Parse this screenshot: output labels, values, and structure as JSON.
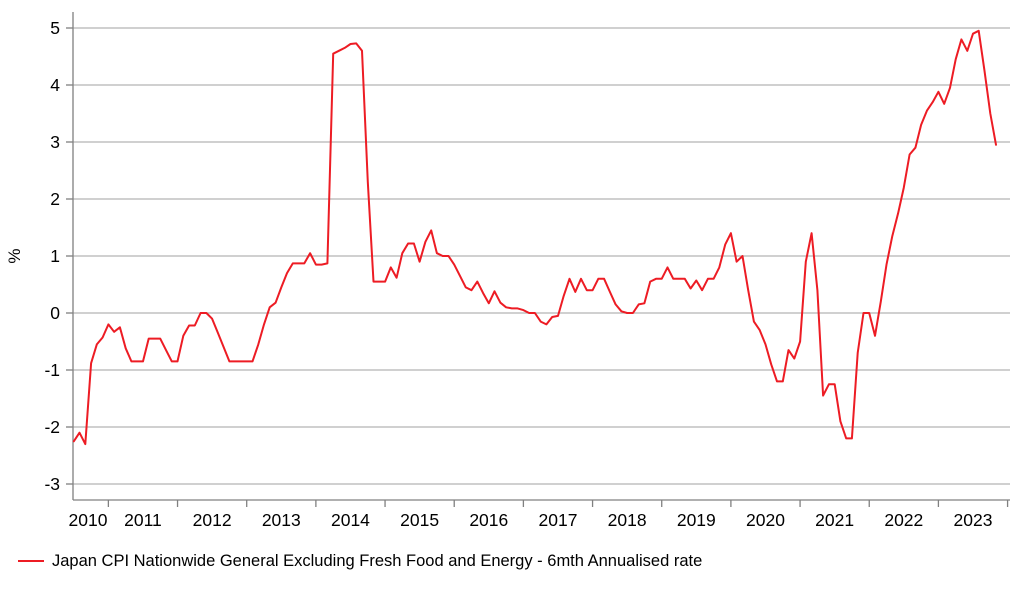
{
  "chart_data": {
    "type": "line",
    "title": "",
    "xlabel": "",
    "ylabel": "%",
    "grid": "horizontal",
    "legend_position": "bottom-left",
    "xlim": [
      2010.49,
      2024.04
    ],
    "ylim": [
      -3.28,
      5.28
    ],
    "y_ticks": [
      -3,
      -2,
      -1,
      0,
      1,
      2,
      3,
      4,
      5
    ],
    "x_tick_years": [
      2011,
      2012,
      2013,
      2014,
      2015,
      2016,
      2017,
      2018,
      2019,
      2020,
      2021,
      2022,
      2023,
      2024
    ],
    "x_tick_labels": [
      "2010",
      "2011",
      "2012",
      "2013",
      "2014",
      "2015",
      "2016",
      "2017",
      "2018",
      "2019",
      "2020",
      "2021",
      "2022",
      "2023"
    ],
    "series": [
      {
        "name": "Japan CPI Nationwide General Excluding Fresh Food and Energy - 6mth Annualised rate",
        "color": "#ed1c24",
        "points": [
          [
            2010.5,
            -2.25
          ],
          [
            2010.583,
            -2.1
          ],
          [
            2010.667,
            -2.3
          ],
          [
            2010.75,
            -0.88
          ],
          [
            2010.833,
            -0.55
          ],
          [
            2010.917,
            -0.43
          ],
          [
            2011,
            -0.2
          ],
          [
            2011.083,
            -0.33
          ],
          [
            2011.167,
            -0.25
          ],
          [
            2011.25,
            -0.62
          ],
          [
            2011.333,
            -0.85
          ],
          [
            2011.417,
            -0.85
          ],
          [
            2011.5,
            -0.85
          ],
          [
            2011.583,
            -0.45
          ],
          [
            2011.667,
            -0.45
          ],
          [
            2011.75,
            -0.45
          ],
          [
            2011.833,
            -0.65
          ],
          [
            2011.917,
            -0.85
          ],
          [
            2012,
            -0.85
          ],
          [
            2012.083,
            -0.4
          ],
          [
            2012.167,
            -0.22
          ],
          [
            2012.25,
            -0.22
          ],
          [
            2012.333,
            0
          ],
          [
            2012.417,
            0
          ],
          [
            2012.5,
            -0.1
          ],
          [
            2012.583,
            -0.35
          ],
          [
            2012.667,
            -0.6
          ],
          [
            2012.75,
            -0.85
          ],
          [
            2012.833,
            -0.85
          ],
          [
            2012.917,
            -0.85
          ],
          [
            2013,
            -0.85
          ],
          [
            2013.083,
            -0.85
          ],
          [
            2013.167,
            -0.55
          ],
          [
            2013.25,
            -0.2
          ],
          [
            2013.333,
            0.1
          ],
          [
            2013.417,
            0.18
          ],
          [
            2013.5,
            0.45
          ],
          [
            2013.583,
            0.7
          ],
          [
            2013.667,
            0.87
          ],
          [
            2013.75,
            0.87
          ],
          [
            2013.833,
            0.87
          ],
          [
            2013.917,
            1.05
          ],
          [
            2014,
            0.85
          ],
          [
            2014.083,
            0.85
          ],
          [
            2014.167,
            0.87
          ],
          [
            2014.25,
            4.55
          ],
          [
            2014.333,
            4.6
          ],
          [
            2014.417,
            4.65
          ],
          [
            2014.5,
            4.72
          ],
          [
            2014.583,
            4.73
          ],
          [
            2014.667,
            4.6
          ],
          [
            2014.75,
            2.3
          ],
          [
            2014.833,
            0.55
          ],
          [
            2014.917,
            0.55
          ],
          [
            2015,
            0.55
          ],
          [
            2015.083,
            0.8
          ],
          [
            2015.167,
            0.62
          ],
          [
            2015.25,
            1.05
          ],
          [
            2015.333,
            1.22
          ],
          [
            2015.417,
            1.22
          ],
          [
            2015.5,
            0.9
          ],
          [
            2015.583,
            1.25
          ],
          [
            2015.667,
            1.45
          ],
          [
            2015.75,
            1.05
          ],
          [
            2015.833,
            1
          ],
          [
            2015.917,
            1
          ],
          [
            2016,
            0.85
          ],
          [
            2016.083,
            0.65
          ],
          [
            2016.167,
            0.45
          ],
          [
            2016.25,
            0.4
          ],
          [
            2016.333,
            0.55
          ],
          [
            2016.417,
            0.35
          ],
          [
            2016.5,
            0.17
          ],
          [
            2016.583,
            0.38
          ],
          [
            2016.667,
            0.18
          ],
          [
            2016.75,
            0.1
          ],
          [
            2016.833,
            0.08
          ],
          [
            2016.917,
            0.08
          ],
          [
            2017,
            0.05
          ],
          [
            2017.083,
            0
          ],
          [
            2017.167,
            0
          ],
          [
            2017.25,
            -0.15
          ],
          [
            2017.333,
            -0.2
          ],
          [
            2017.417,
            -0.07
          ],
          [
            2017.5,
            -0.05
          ],
          [
            2017.583,
            0.3
          ],
          [
            2017.667,
            0.6
          ],
          [
            2017.75,
            0.37
          ],
          [
            2017.833,
            0.6
          ],
          [
            2017.917,
            0.4
          ],
          [
            2018,
            0.4
          ],
          [
            2018.083,
            0.6
          ],
          [
            2018.167,
            0.6
          ],
          [
            2018.25,
            0.37
          ],
          [
            2018.333,
            0.15
          ],
          [
            2018.417,
            0.03
          ],
          [
            2018.5,
            0
          ],
          [
            2018.583,
            0
          ],
          [
            2018.667,
            0.15
          ],
          [
            2018.75,
            0.17
          ],
          [
            2018.833,
            0.55
          ],
          [
            2018.917,
            0.6
          ],
          [
            2019,
            0.6
          ],
          [
            2019.083,
            0.8
          ],
          [
            2019.167,
            0.6
          ],
          [
            2019.25,
            0.6
          ],
          [
            2019.333,
            0.6
          ],
          [
            2019.417,
            0.43
          ],
          [
            2019.5,
            0.57
          ],
          [
            2019.583,
            0.4
          ],
          [
            2019.667,
            0.6
          ],
          [
            2019.75,
            0.6
          ],
          [
            2019.833,
            0.8
          ],
          [
            2019.917,
            1.2
          ],
          [
            2020,
            1.4
          ],
          [
            2020.083,
            0.9
          ],
          [
            2020.167,
            1
          ],
          [
            2020.25,
            0.4
          ],
          [
            2020.333,
            -0.15
          ],
          [
            2020.417,
            -0.3
          ],
          [
            2020.5,
            -0.55
          ],
          [
            2020.583,
            -0.9
          ],
          [
            2020.667,
            -1.2
          ],
          [
            2020.75,
            -1.2
          ],
          [
            2020.833,
            -0.65
          ],
          [
            2020.917,
            -0.8
          ],
          [
            2021,
            -0.5
          ],
          [
            2021.083,
            0.9
          ],
          [
            2021.167,
            1.4
          ],
          [
            2021.25,
            0.4
          ],
          [
            2021.333,
            -1.45
          ],
          [
            2021.417,
            -1.25
          ],
          [
            2021.5,
            -1.25
          ],
          [
            2021.583,
            -1.9
          ],
          [
            2021.667,
            -2.2
          ],
          [
            2021.75,
            -2.2
          ],
          [
            2021.833,
            -0.7
          ],
          [
            2021.917,
            0
          ],
          [
            2022,
            0
          ],
          [
            2022.083,
            -0.4
          ],
          [
            2022.167,
            0.2
          ],
          [
            2022.25,
            0.85
          ],
          [
            2022.333,
            1.35
          ],
          [
            2022.417,
            1.75
          ],
          [
            2022.5,
            2.2
          ],
          [
            2022.583,
            2.78
          ],
          [
            2022.667,
            2.9
          ],
          [
            2022.75,
            3.3
          ],
          [
            2022.833,
            3.55
          ],
          [
            2022.917,
            3.7
          ],
          [
            2023,
            3.88
          ],
          [
            2023.083,
            3.67
          ],
          [
            2023.167,
            3.95
          ],
          [
            2023.25,
            4.45
          ],
          [
            2023.333,
            4.8
          ],
          [
            2023.417,
            4.6
          ],
          [
            2023.5,
            4.9
          ],
          [
            2023.583,
            4.95
          ],
          [
            2023.667,
            4.25
          ],
          [
            2023.75,
            3.5
          ],
          [
            2023.833,
            2.95
          ]
        ]
      }
    ]
  },
  "legend": {
    "label": "Japan CPI Nationwide General Excluding Fresh Food and Energy - 6mth Annualised rate",
    "color": "#ed1c24"
  },
  "axis": {
    "ylabel": "%"
  },
  "style": {
    "grid_color": "#b3b3b3",
    "axis_color": "#808080",
    "text_color": "#000000"
  }
}
